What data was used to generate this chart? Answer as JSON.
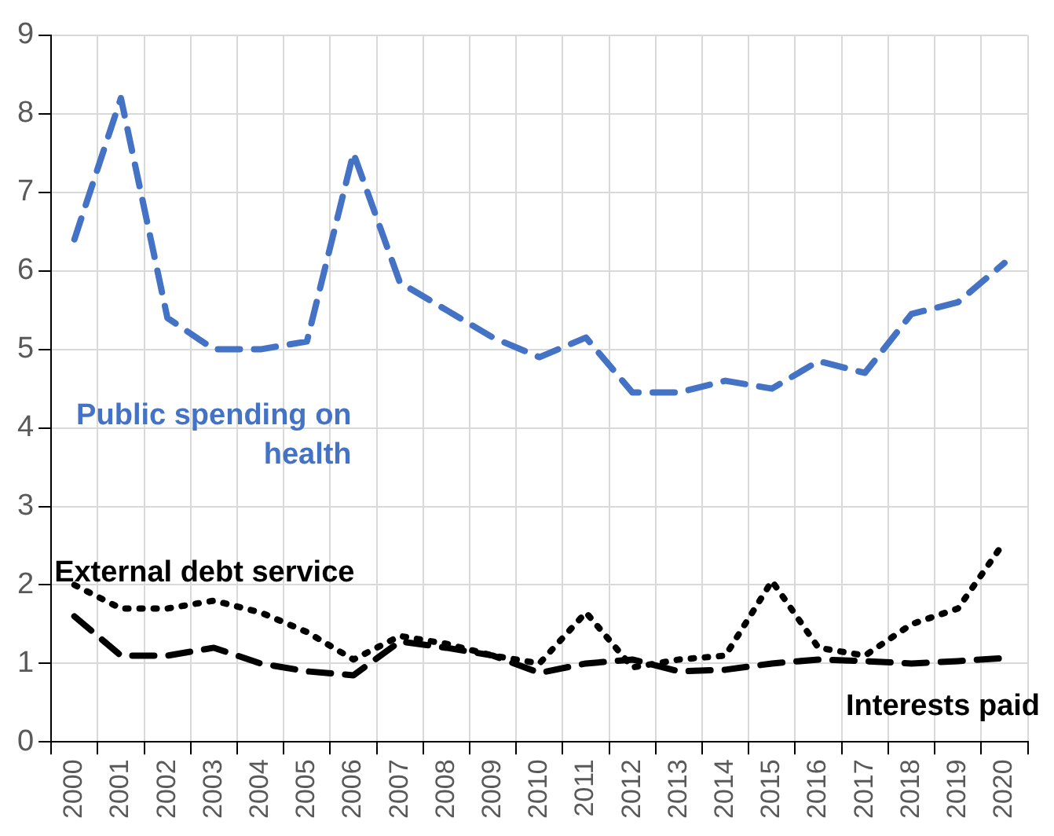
{
  "chart_data": {
    "type": "line",
    "categories": [
      "2000",
      "2001",
      "2002",
      "2003",
      "2004",
      "2005",
      "2006",
      "2007",
      "2008",
      "2009",
      "2010",
      "2011",
      "2012",
      "2013",
      "2014",
      "2015",
      "2016",
      "2017",
      "2018",
      "2019",
      "2020"
    ],
    "series": [
      {
        "name": "Public spending on health",
        "color": "#4472c4",
        "line_style": "dashed",
        "values": [
          6.4,
          8.2,
          5.4,
          5.0,
          5.0,
          5.1,
          7.5,
          5.85,
          5.5,
          5.15,
          4.9,
          5.15,
          4.45,
          4.45,
          4.6,
          4.5,
          4.85,
          4.7,
          5.45,
          5.6,
          6.1
        ]
      },
      {
        "name": "External debt service",
        "color": "#000000",
        "line_style": "dotted",
        "values": [
          2.0,
          1.7,
          1.7,
          1.8,
          1.65,
          1.4,
          1.05,
          1.35,
          1.25,
          1.1,
          1.0,
          1.65,
          0.95,
          1.05,
          1.1,
          2.05,
          1.2,
          1.1,
          1.5,
          1.7,
          2.55
        ]
      },
      {
        "name": "Interests paid",
        "color": "#000000",
        "line_style": "dashed",
        "values": [
          1.6,
          1.1,
          1.1,
          1.2,
          1.0,
          0.9,
          0.85,
          1.28,
          1.2,
          1.1,
          0.88,
          1.0,
          1.05,
          0.9,
          0.92,
          1.0,
          1.05,
          1.03,
          1.0,
          1.03,
          1.07
        ]
      }
    ],
    "ylim": [
      0,
      9
    ],
    "yticks": [
      0,
      1,
      2,
      3,
      4,
      5,
      6,
      7,
      8,
      9
    ],
    "grid": true,
    "legend": false,
    "marker": "none"
  }
}
